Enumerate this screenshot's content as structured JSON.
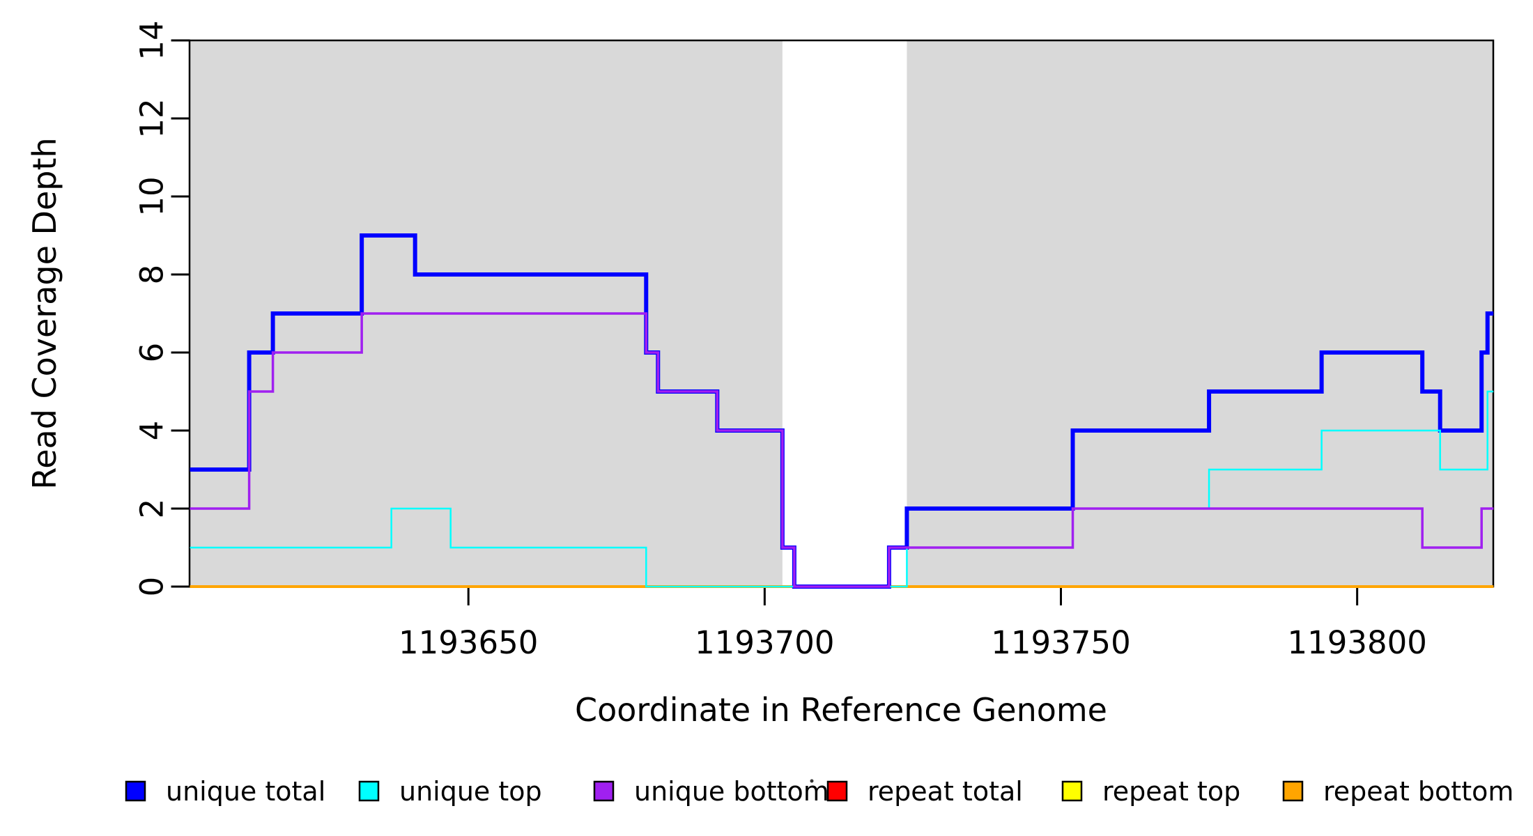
{
  "chart_data": {
    "type": "line",
    "subtype": "step-coverage-plot",
    "title": "",
    "xlabel": "Coordinate in Reference Genome",
    "ylabel": "Read Coverage Depth",
    "xlim": [
      1193603,
      1193823
    ],
    "ylim": [
      0,
      14
    ],
    "x_ticks": [
      1193650,
      1193700,
      1193750,
      1193800
    ],
    "y_ticks": [
      0,
      2,
      4,
      6,
      8,
      10,
      12,
      14
    ],
    "grid": false,
    "background_color": "#ffffff",
    "shaded_region_color": "#d9d9d9",
    "shaded_regions": [
      {
        "x0": 1193603,
        "x1": 1193703
      },
      {
        "x0": 1193724,
        "x1": 1193823
      }
    ],
    "x_end": 1193823,
    "series": [
      {
        "name": "repeat total",
        "color": "#ff0000",
        "width": 3,
        "steps": [
          [
            1193603,
            0
          ]
        ]
      },
      {
        "name": "repeat top",
        "color": "#ffff00",
        "width": 3,
        "steps": [
          [
            1193603,
            0
          ]
        ]
      },
      {
        "name": "repeat bottom",
        "color": "#ffa500",
        "width": 4,
        "steps": [
          [
            1193603,
            0
          ]
        ]
      },
      {
        "name": "unique total",
        "color": "#0000ff",
        "width": 6,
        "steps": [
          [
            1193603,
            3
          ],
          [
            1193613,
            6
          ],
          [
            1193617,
            7
          ],
          [
            1193632,
            9
          ],
          [
            1193641,
            8
          ],
          [
            1193680,
            6
          ],
          [
            1193682,
            5
          ],
          [
            1193692,
            4
          ],
          [
            1193703,
            1
          ],
          [
            1193705,
            0
          ],
          [
            1193721,
            1
          ],
          [
            1193724,
            2
          ],
          [
            1193752,
            4
          ],
          [
            1193775,
            5
          ],
          [
            1193794,
            6
          ],
          [
            1193811,
            5
          ],
          [
            1193814,
            4
          ],
          [
            1193821,
            6
          ],
          [
            1193822,
            7
          ]
        ]
      },
      {
        "name": "unique top",
        "color": "#00ffff",
        "width": 2.5,
        "steps": [
          [
            1193603,
            1
          ],
          [
            1193637,
            2
          ],
          [
            1193647,
            1
          ],
          [
            1193680,
            0
          ],
          [
            1193724,
            1
          ],
          [
            1193752,
            2
          ],
          [
            1193775,
            3
          ],
          [
            1193794,
            4
          ],
          [
            1193814,
            3
          ],
          [
            1193822,
            5
          ]
        ]
      },
      {
        "name": "unique bottom",
        "color": "#a020f0",
        "width": 3.5,
        "steps": [
          [
            1193603,
            2
          ],
          [
            1193613,
            5
          ],
          [
            1193617,
            6
          ],
          [
            1193632,
            7
          ],
          [
            1193680,
            6
          ],
          [
            1193682,
            5
          ],
          [
            1193692,
            4
          ],
          [
            1193703,
            1
          ],
          [
            1193705,
            0
          ],
          [
            1193721,
            1
          ],
          [
            1193752,
            2
          ],
          [
            1193811,
            1
          ],
          [
            1193821,
            2
          ]
        ]
      }
    ],
    "legend_position": "bottom",
    "legend": [
      {
        "label": "unique total",
        "color": "#0000ff"
      },
      {
        "label": "unique top",
        "color": "#00ffff"
      },
      {
        "label": "unique bottom",
        "color": "#a020f0"
      },
      {
        "label": "repeat total",
        "color": "#ff0000"
      },
      {
        "label": "repeat top",
        "color": "#ffff00"
      },
      {
        "label": "repeat bottom",
        "color": "#ffa500"
      }
    ]
  }
}
